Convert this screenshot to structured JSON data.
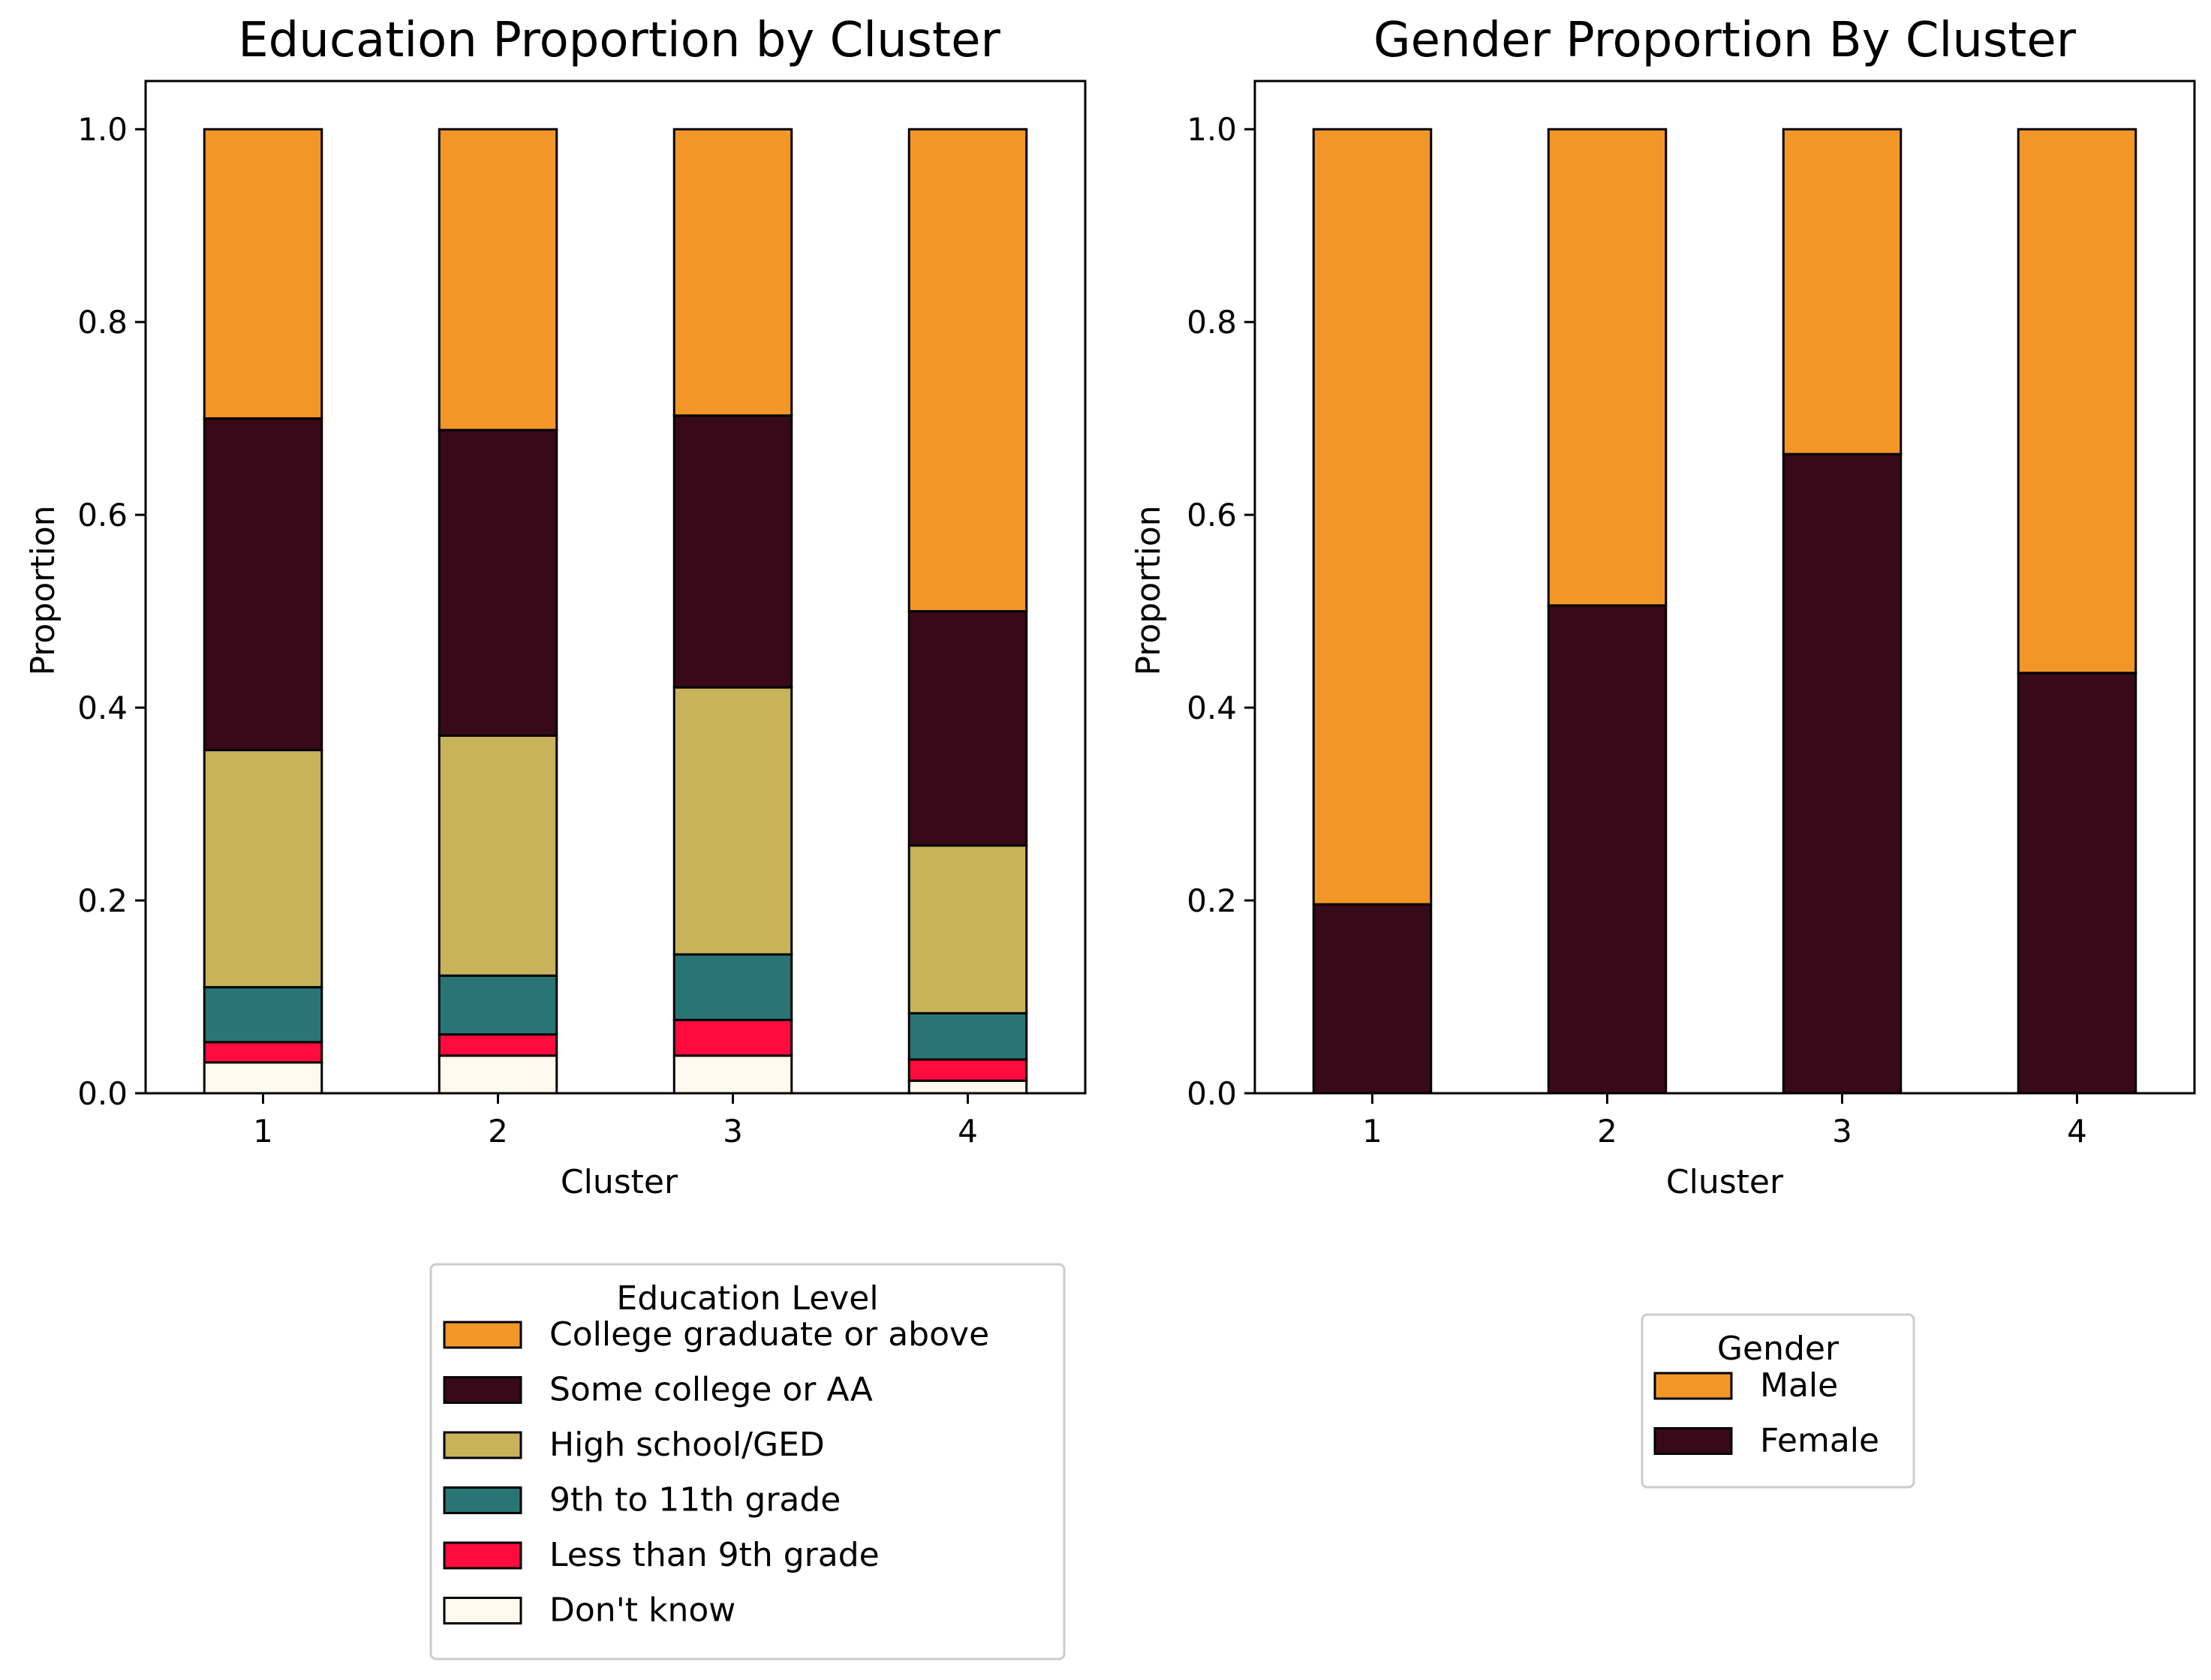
{
  "chart_data": [
    {
      "type": "bar",
      "stacked": true,
      "title": "Education Proportion by Cluster",
      "xlabel": "Cluster",
      "ylabel": "Proportion",
      "categories": [
        "1",
        "2",
        "3",
        "4"
      ],
      "ylim": [
        0,
        1.05
      ],
      "yticks": [
        "0.0",
        "0.2",
        "0.4",
        "0.6",
        "0.8",
        "1.0"
      ],
      "grid": false,
      "legend": {
        "title": "Education Level",
        "position": "below"
      },
      "series": [
        {
          "name": "Don't know",
          "color": "#FFF8EC",
          "values": [
            0.032,
            0.039,
            0.039,
            0.013
          ]
        },
        {
          "name": "Less than 9th grade",
          "color": "#FF0B3D",
          "values": [
            0.021,
            0.022,
            0.037,
            0.022
          ]
        },
        {
          "name": "9th to 11th grade",
          "color": "#297576",
          "values": [
            0.057,
            0.061,
            0.068,
            0.048
          ]
        },
        {
          "name": "High school/GED",
          "color": "#C9B35A",
          "values": [
            0.246,
            0.249,
            0.277,
            0.174
          ]
        },
        {
          "name": "Some college or AA",
          "color": "#380A19",
          "values": [
            0.344,
            0.317,
            0.282,
            0.243
          ]
        },
        {
          "name": "College graduate or above",
          "color": "#F39628",
          "values": [
            0.3,
            0.312,
            0.297,
            0.5
          ]
        }
      ]
    },
    {
      "type": "bar",
      "stacked": true,
      "title": "Gender Proportion By Cluster",
      "xlabel": "Cluster",
      "ylabel": "Proportion",
      "categories": [
        "1",
        "2",
        "3",
        "4"
      ],
      "ylim": [
        0,
        1.05
      ],
      "yticks": [
        "0.0",
        "0.2",
        "0.4",
        "0.6",
        "0.8",
        "1.0"
      ],
      "grid": false,
      "legend": {
        "title": "Gender",
        "position": "below"
      },
      "series": [
        {
          "name": "Female",
          "color": "#380A19",
          "values": [
            0.196,
            0.506,
            0.663,
            0.436
          ]
        },
        {
          "name": "Male",
          "color": "#F39628",
          "values": [
            0.804,
            0.494,
            0.337,
            0.564
          ]
        }
      ]
    }
  ]
}
